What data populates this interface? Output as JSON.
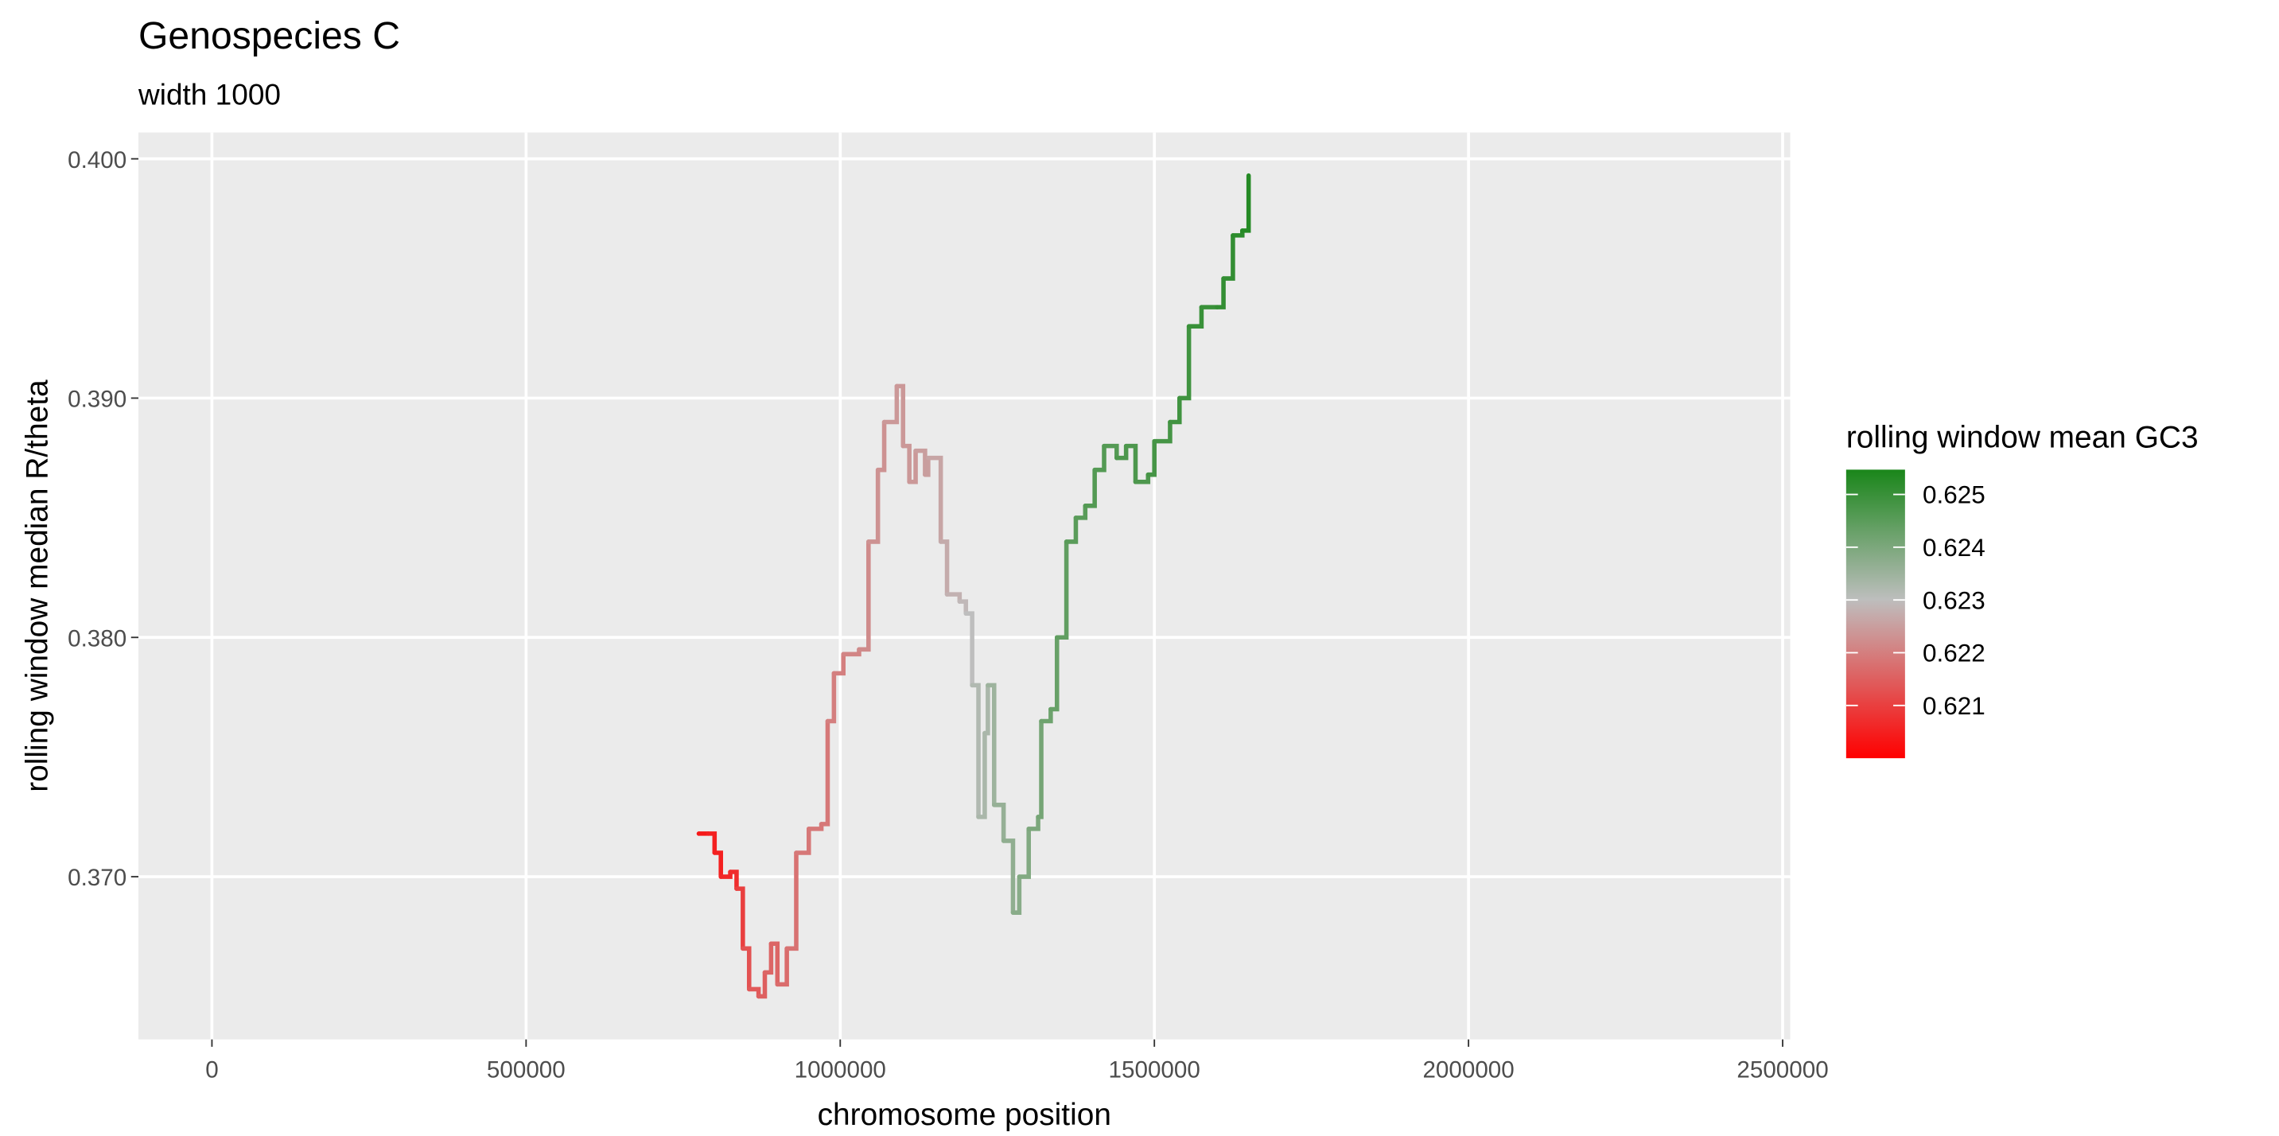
{
  "chart_data": {
    "type": "line",
    "title": "Genospecies C",
    "subtitle": "width 1000",
    "x_label": "chromosome position",
    "y_label": "rolling window median R/theta",
    "legend_title": "rolling window mean GC3",
    "xlim": [
      -117000,
      2512000
    ],
    "xticks": [
      0,
      500000,
      1000000,
      1500000,
      2000000,
      2500000
    ],
    "ylim": [
      0.3632,
      0.4011
    ],
    "yticks": [
      {
        "value": 0.37,
        "label": "0.370"
      },
      {
        "value": 0.38,
        "label": "0.380"
      },
      {
        "value": 0.39,
        "label": "0.390"
      },
      {
        "value": 0.4,
        "label": "0.400"
      }
    ],
    "grid": true,
    "color_scale": {
      "low": "#ff0000",
      "mid": "#bebebe",
      "high": "#1a861a",
      "midpoint": 0.623,
      "limits": [
        0.62,
        0.62547
      ],
      "ticks": [
        0.621,
        0.622,
        0.623,
        0.624,
        0.625
      ]
    },
    "series": [
      {
        "name": "rolling window median R/theta",
        "x": [
          775000,
          790000,
          800000,
          810000,
          825000,
          835000,
          845000,
          855000,
          870000,
          880000,
          890000,
          900000,
          915000,
          930000,
          950000,
          970000,
          980000,
          990000,
          1005000,
          1030000,
          1045000,
          1060000,
          1070000,
          1090000,
          1100000,
          1110000,
          1120000,
          1135000,
          1140000,
          1160000,
          1170000,
          1190000,
          1200000,
          1210000,
          1220000,
          1230000,
          1235000,
          1245000,
          1260000,
          1275000,
          1285000,
          1300000,
          1315000,
          1320000,
          1335000,
          1345000,
          1360000,
          1375000,
          1390000,
          1405000,
          1420000,
          1440000,
          1455000,
          1470000,
          1490000,
          1500000,
          1525000,
          1540000,
          1555000,
          1575000,
          1600000,
          1610000,
          1625000,
          1640000,
          1650000
        ],
        "values": [
          0.3718,
          0.3718,
          0.371,
          0.37,
          0.3702,
          0.3695,
          0.367,
          0.3653,
          0.365,
          0.366,
          0.3672,
          0.3655,
          0.367,
          0.371,
          0.372,
          0.3722,
          0.3765,
          0.3785,
          0.3793,
          0.3795,
          0.384,
          0.387,
          0.389,
          0.3905,
          0.388,
          0.3865,
          0.3878,
          0.3868,
          0.3875,
          0.384,
          0.3818,
          0.3815,
          0.381,
          0.378,
          0.3725,
          0.376,
          0.378,
          0.373,
          0.3715,
          0.3685,
          0.37,
          0.372,
          0.3725,
          0.3765,
          0.377,
          0.38,
          0.384,
          0.385,
          0.3855,
          0.387,
          0.388,
          0.3875,
          0.388,
          0.3865,
          0.3868,
          0.3882,
          0.389,
          0.39,
          0.393,
          0.3938,
          0.3938,
          0.395,
          0.3968,
          0.397,
          0.3993
        ],
        "gc3": [
          0.6203,
          0.6204,
          0.6205,
          0.6205,
          0.6206,
          0.6207,
          0.621,
          0.6213,
          0.6214,
          0.6215,
          0.6216,
          0.6216,
          0.6217,
          0.6218,
          0.6219,
          0.6219,
          0.6219,
          0.622,
          0.622,
          0.6221,
          0.6222,
          0.6223,
          0.6223,
          0.6224,
          0.6224,
          0.6224,
          0.6224,
          0.6225,
          0.6225,
          0.6226,
          0.6227,
          0.6228,
          0.6229,
          0.623,
          0.6232,
          0.6233,
          0.6233,
          0.6235,
          0.6236,
          0.6237,
          0.6238,
          0.6239,
          0.624,
          0.6241,
          0.6242,
          0.6243,
          0.6244,
          0.6245,
          0.6245,
          0.6246,
          0.6246,
          0.6246,
          0.6247,
          0.6247,
          0.6247,
          0.6248,
          0.6248,
          0.6249,
          0.6249,
          0.625,
          0.625,
          0.6251,
          0.6251,
          0.6252,
          0.6253
        ]
      }
    ]
  }
}
